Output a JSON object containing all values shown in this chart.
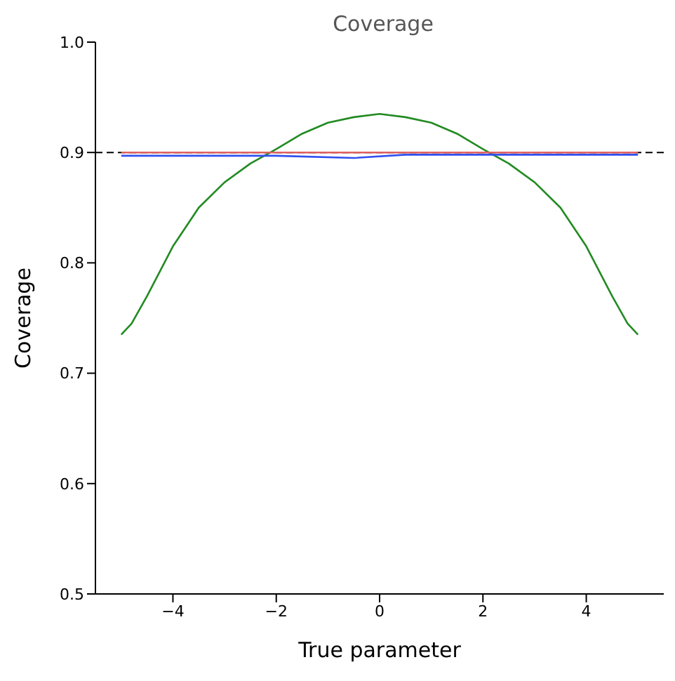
{
  "chart_data": {
    "type": "line",
    "title": "Coverage",
    "xlabel": "True parameter",
    "ylabel": "Coverage",
    "xlim": [
      -5.5,
      5.5
    ],
    "xticks": [
      -4,
      -2,
      0,
      2,
      4
    ],
    "ylim": [
      0.5,
      1.0
    ],
    "yticks": [
      0.5,
      0.6,
      0.7,
      0.8,
      0.9,
      {
        "value": 1,
        "label": "1.0"
      }
    ],
    "grid": false,
    "legend": false,
    "marker": "none",
    "series": [
      {
        "color": "#228b22",
        "x": [
          -5,
          -4.8,
          -4.5,
          -4,
          -3.5,
          -3,
          -2.5,
          -2,
          -1.5,
          -1,
          -0.5,
          0,
          0.5,
          1,
          1.5,
          2,
          2.5,
          3,
          3.5,
          4,
          4.5,
          4.8,
          5
        ],
        "values": [
          0.735,
          0.745,
          0.77,
          0.815,
          0.85,
          0.873,
          0.89,
          0.903,
          0.917,
          0.927,
          0.932,
          0.935,
          0.932,
          0.927,
          0.917,
          0.903,
          0.89,
          0.873,
          0.85,
          0.815,
          0.77,
          0.745,
          0.735
        ]
      },
      {
        "color": "#e06060",
        "x": [
          -5,
          0,
          5
        ],
        "values": [
          0.9,
          0.9,
          0.9
        ]
      },
      {
        "color": "#3050f0",
        "x": [
          -5,
          -2,
          -0.5,
          0.5,
          2,
          5
        ],
        "values": [
          0.897,
          0.897,
          0.895,
          0.898,
          0.898,
          0.898
        ]
      }
    ],
    "ref_lines": [
      {
        "axis": "y",
        "value": 0.9,
        "color": "#000000",
        "line_style": "dashed"
      }
    ]
  }
}
